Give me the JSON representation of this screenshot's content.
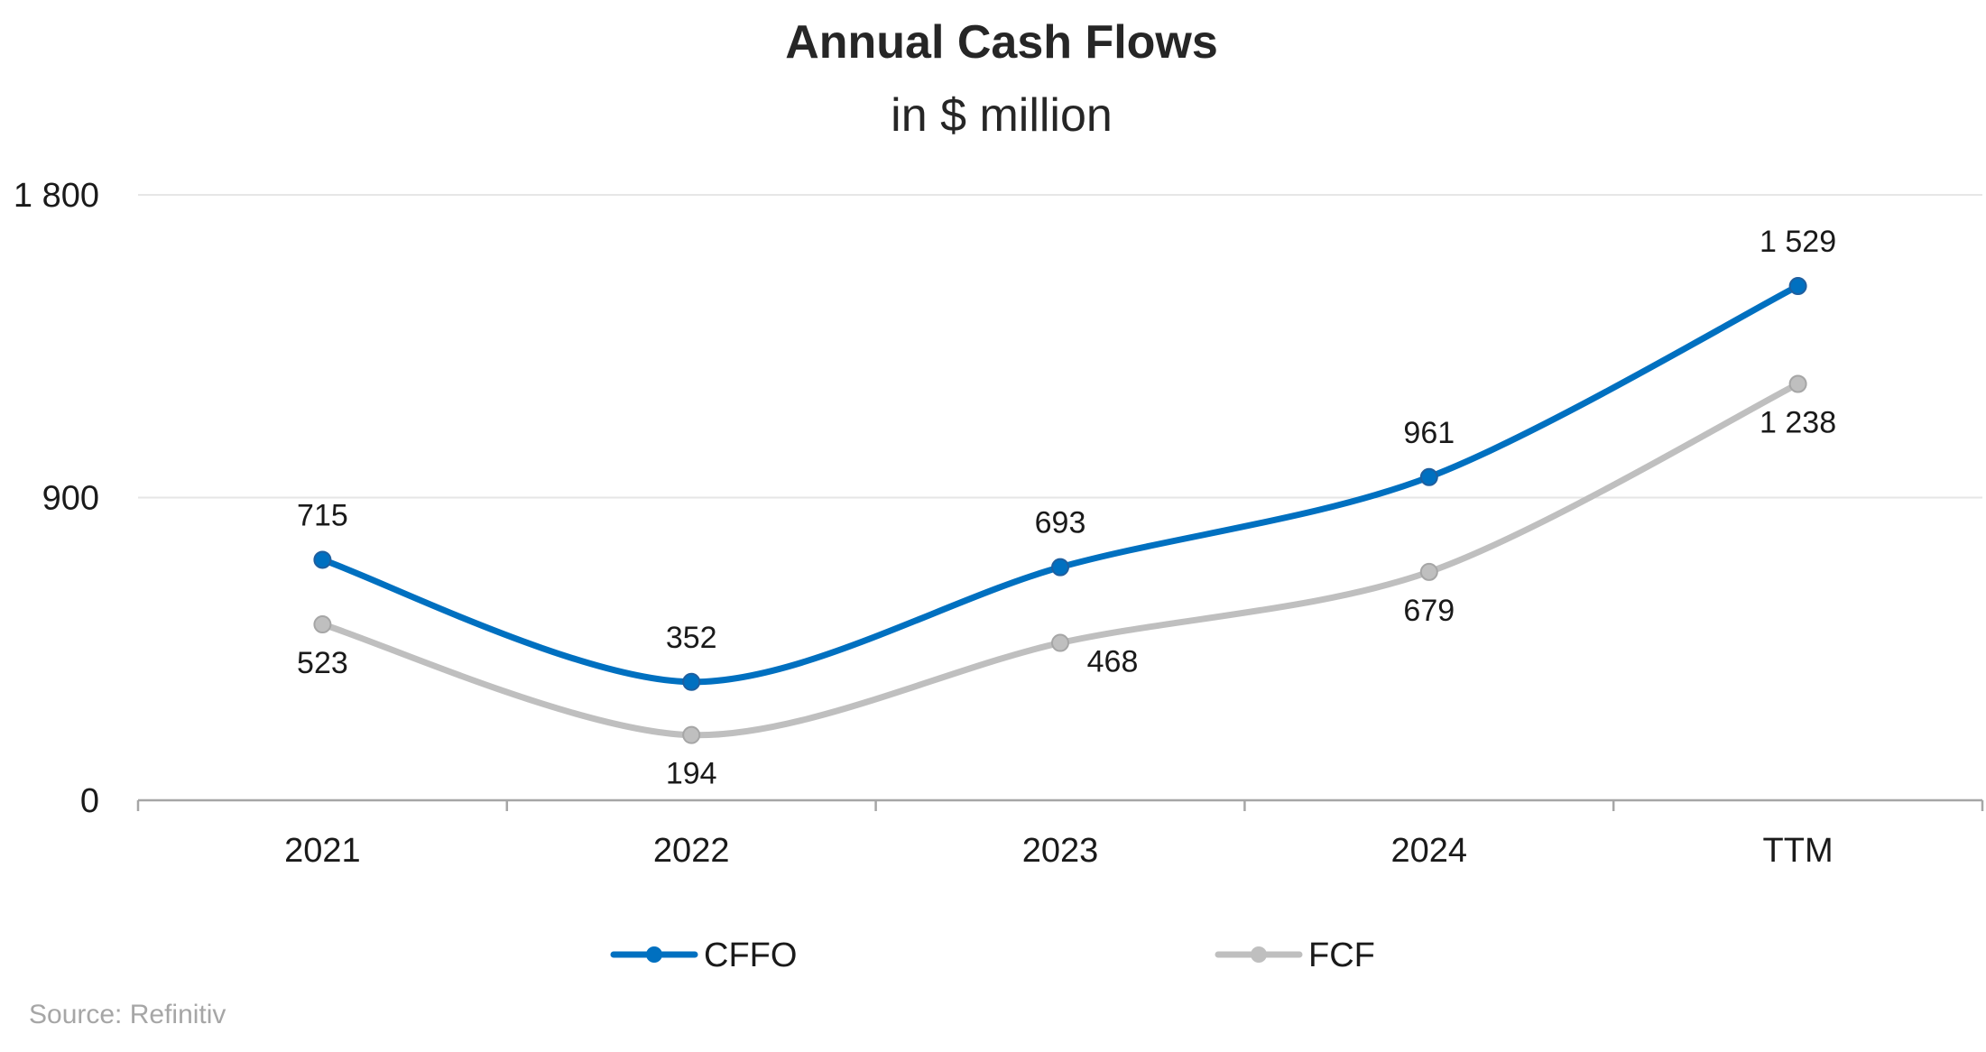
{
  "chart_data": {
    "type": "line",
    "title": "Annual Cash Flows",
    "subtitle": "in $ million",
    "categories": [
      "2021",
      "2022",
      "2023",
      "2024",
      "TTM"
    ],
    "series": [
      {
        "name": "CFFO",
        "values": [
          715,
          352,
          693,
          961,
          1529
        ],
        "color": "#0070c0",
        "labels": [
          "715",
          "352",
          "693",
          "961",
          "1 529"
        ]
      },
      {
        "name": "FCF",
        "values": [
          523,
          194,
          468,
          679,
          1238
        ],
        "color": "#bfbfbf",
        "labels": [
          "523",
          "194",
          "468",
          "679",
          "1 238"
        ]
      }
    ],
    "ylim": [
      0,
      1800
    ],
    "yticks": [
      0,
      900,
      1800
    ],
    "ytick_labels": [
      "0",
      "900",
      "1 800"
    ],
    "grid": true,
    "smooth": true,
    "legend": "bottom"
  },
  "source": "Source: Refinitiv"
}
